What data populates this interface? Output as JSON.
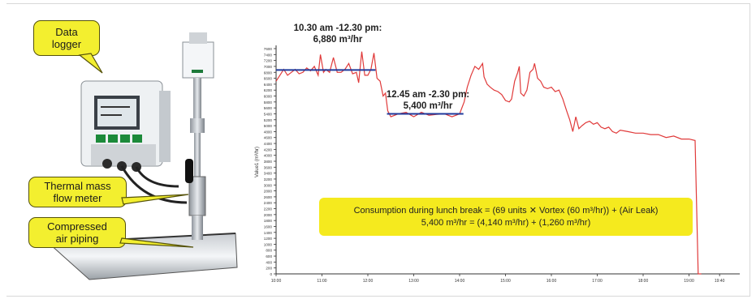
{
  "labels": {
    "data_logger": [
      "Data",
      "logger"
    ],
    "thermal_meter": [
      "Thermal mass",
      "flow meter"
    ],
    "compressed_air": [
      "Compressed",
      "air piping"
    ]
  },
  "annotations": {
    "morning_time": "10.30 am  -12.30 pm:",
    "morning_rate": "6,880 m³/hr",
    "lunch_time": "12.45 am  -2.30 pm:",
    "lunch_rate": "5,400 m³/hr"
  },
  "summary": {
    "line1": "Consumption during lunch break = (69 units ✕ Vortex (60 m³/hr)) + (Air Leak)",
    "line2": "5,400 m³/hr =  (4,140 m³/hr) + (1,260 m³/hr)"
  },
  "colors": {
    "series": "#e03a3a",
    "baseline": "#1f3a9c",
    "callout": "#f3ef2f",
    "summary_box": "#f5ea1e"
  },
  "chart_data": {
    "type": "line",
    "ylabel": "Value1 (m³/hr)",
    "ylim": [
      0,
      7600
    ],
    "yticks": [
      "7600",
      "7400",
      "7200",
      "7000",
      "6800",
      "6600",
      "6400",
      "6200",
      "6000",
      "5800",
      "5600",
      "5400",
      "5200",
      "5000",
      "4800",
      "4600",
      "4400",
      "4200",
      "4000",
      "3800",
      "3600",
      "3400",
      "3200",
      "3000",
      "2800",
      "2600",
      "2400",
      "2200",
      "2000",
      "1800",
      "1600",
      "1400",
      "1200",
      "1000",
      "800",
      "600",
      "400",
      "200",
      "0"
    ],
    "xlim": [
      0,
      600
    ],
    "xticks": [
      "10:00",
      "11:00",
      "12:00",
      "13:00",
      "14:00",
      "15:00",
      "16:00",
      "17:00",
      "18:00",
      "19:00",
      "19:40"
    ],
    "xtick_minutes": [
      0,
      60,
      120,
      180,
      240,
      300,
      360,
      420,
      480,
      540,
      580
    ],
    "grid": false,
    "series": [
      {
        "points": [
          [
            0,
            6500
          ],
          [
            5,
            6700
          ],
          [
            10,
            6900
          ],
          [
            15,
            6700
          ],
          [
            20,
            6800
          ],
          [
            25,
            6900
          ],
          [
            30,
            6750
          ],
          [
            35,
            6800
          ],
          [
            40,
            6950
          ],
          [
            45,
            6850
          ],
          [
            50,
            7000
          ],
          [
            55,
            6700
          ],
          [
            58,
            7400
          ],
          [
            62,
            6800
          ],
          [
            65,
            6900
          ],
          [
            70,
            6800
          ],
          [
            75,
            7300
          ],
          [
            80,
            6800
          ],
          [
            85,
            6800
          ],
          [
            90,
            6900
          ],
          [
            95,
            7100
          ],
          [
            100,
            6750
          ],
          [
            105,
            6800
          ],
          [
            108,
            6450
          ],
          [
            112,
            7500
          ],
          [
            116,
            6700
          ],
          [
            120,
            6700
          ],
          [
            124,
            6900
          ],
          [
            128,
            7450
          ],
          [
            132,
            6600
          ],
          [
            136,
            6500
          ],
          [
            140,
            6000
          ],
          [
            143,
            6100
          ],
          [
            146,
            5500
          ],
          [
            150,
            5300
          ],
          [
            160,
            5400
          ],
          [
            170,
            5450
          ],
          [
            180,
            5300
          ],
          [
            190,
            5450
          ],
          [
            200,
            5350
          ],
          [
            210,
            5380
          ],
          [
            220,
            5400
          ],
          [
            230,
            5300
          ],
          [
            240,
            5400
          ],
          [
            246,
            5800
          ],
          [
            250,
            6300
          ],
          [
            255,
            6700
          ],
          [
            260,
            7000
          ],
          [
            265,
            6900
          ],
          [
            270,
            7100
          ],
          [
            272,
            6650
          ],
          [
            276,
            6400
          ],
          [
            280,
            6300
          ],
          [
            285,
            6200
          ],
          [
            290,
            6150
          ],
          [
            295,
            6050
          ],
          [
            300,
            5850
          ],
          [
            305,
            5800
          ],
          [
            308,
            5900
          ],
          [
            312,
            6500
          ],
          [
            316,
            6800
          ],
          [
            318,
            7000
          ],
          [
            320,
            6100
          ],
          [
            324,
            6000
          ],
          [
            328,
            6200
          ],
          [
            332,
            6800
          ],
          [
            336,
            6900
          ],
          [
            338,
            7100
          ],
          [
            342,
            6600
          ],
          [
            346,
            6500
          ],
          [
            350,
            6300
          ],
          [
            355,
            6250
          ],
          [
            360,
            6300
          ],
          [
            365,
            6150
          ],
          [
            370,
            6200
          ],
          [
            375,
            5900
          ],
          [
            380,
            5500
          ],
          [
            384,
            5200
          ],
          [
            388,
            4800
          ],
          [
            392,
            5300
          ],
          [
            396,
            4900
          ],
          [
            400,
            5000
          ],
          [
            405,
            5100
          ],
          [
            410,
            5150
          ],
          [
            415,
            5050
          ],
          [
            420,
            5100
          ],
          [
            425,
            4950
          ],
          [
            430,
            4900
          ],
          [
            435,
            4950
          ],
          [
            440,
            4800
          ],
          [
            445,
            4750
          ],
          [
            450,
            4850
          ],
          [
            460,
            4800
          ],
          [
            470,
            4750
          ],
          [
            480,
            4750
          ],
          [
            490,
            4700
          ],
          [
            500,
            4700
          ],
          [
            510,
            4600
          ],
          [
            520,
            4650
          ],
          [
            530,
            4550
          ],
          [
            540,
            4550
          ],
          [
            548,
            4500
          ],
          [
            552,
            0
          ],
          [
            556,
            0
          ]
        ]
      }
    ],
    "reference_lines": [
      {
        "label": "6,880 m³/hr",
        "value": 6880,
        "x_from": 0,
        "x_to": 130
      },
      {
        "label": "5,400 m³/hr",
        "value": 5400,
        "x_from": 145,
        "x_to": 245
      }
    ]
  }
}
